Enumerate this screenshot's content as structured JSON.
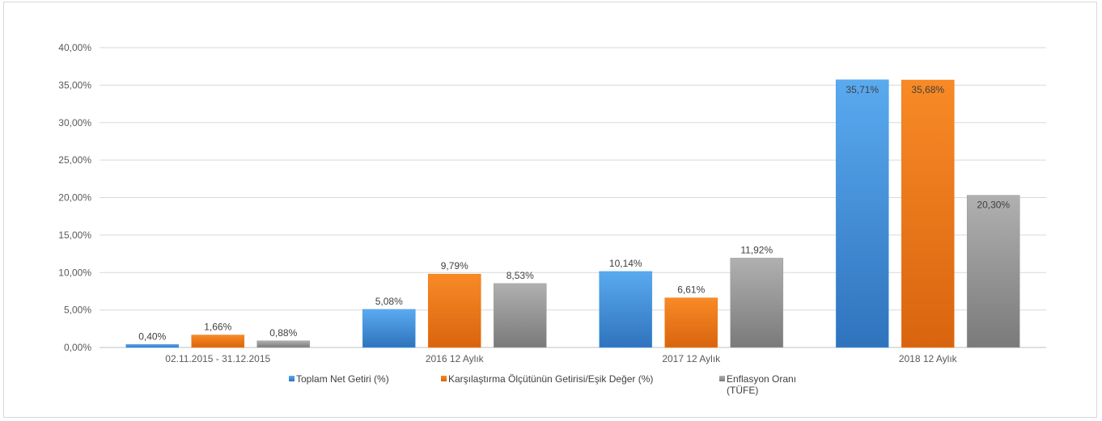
{
  "chart_data": {
    "type": "bar",
    "title": "",
    "xlabel": "",
    "ylabel": "",
    "categories": [
      "02.11.2015 - 31.12.2015",
      "2016 12 Aylık",
      "2017 12 Aylık",
      "2018 12 Aylık"
    ],
    "series": [
      {
        "name": "Toplam Net Getiri (%)",
        "values": [
          0.4,
          5.08,
          10.14,
          35.71
        ],
        "labels": [
          "0,40%",
          "5,08%",
          "10,14%",
          "35,71%"
        ],
        "color": "#4a9fe8"
      },
      {
        "name": "Karşılaştırma Ölçütünün Getirisi/Eşik Değer (%)",
        "values": [
          1.66,
          9.79,
          6.61,
          35.68
        ],
        "labels": [
          "1,66%",
          "9,79%",
          "6,61%",
          "35,68%"
        ],
        "color": "#f27d1e"
      },
      {
        "name": "Enflasyon Oranı (TÜFE)",
        "values": [
          0.88,
          8.53,
          11.92,
          20.3
        ],
        "labels": [
          "0,88%",
          "8,53%",
          "11,92%",
          "20,30%"
        ],
        "color": "#9e9e9e"
      }
    ],
    "yticks": [
      0,
      5,
      10,
      15,
      20,
      25,
      30,
      35,
      40
    ],
    "ytick_labels": [
      "0,00%",
      "5,00%",
      "10,00%",
      "15,00%",
      "20,00%",
      "25,00%",
      "30,00%",
      "35,00%",
      "40,00%"
    ],
    "ylim": [
      0,
      40
    ],
    "grid": true,
    "legend_position": "bottom"
  }
}
